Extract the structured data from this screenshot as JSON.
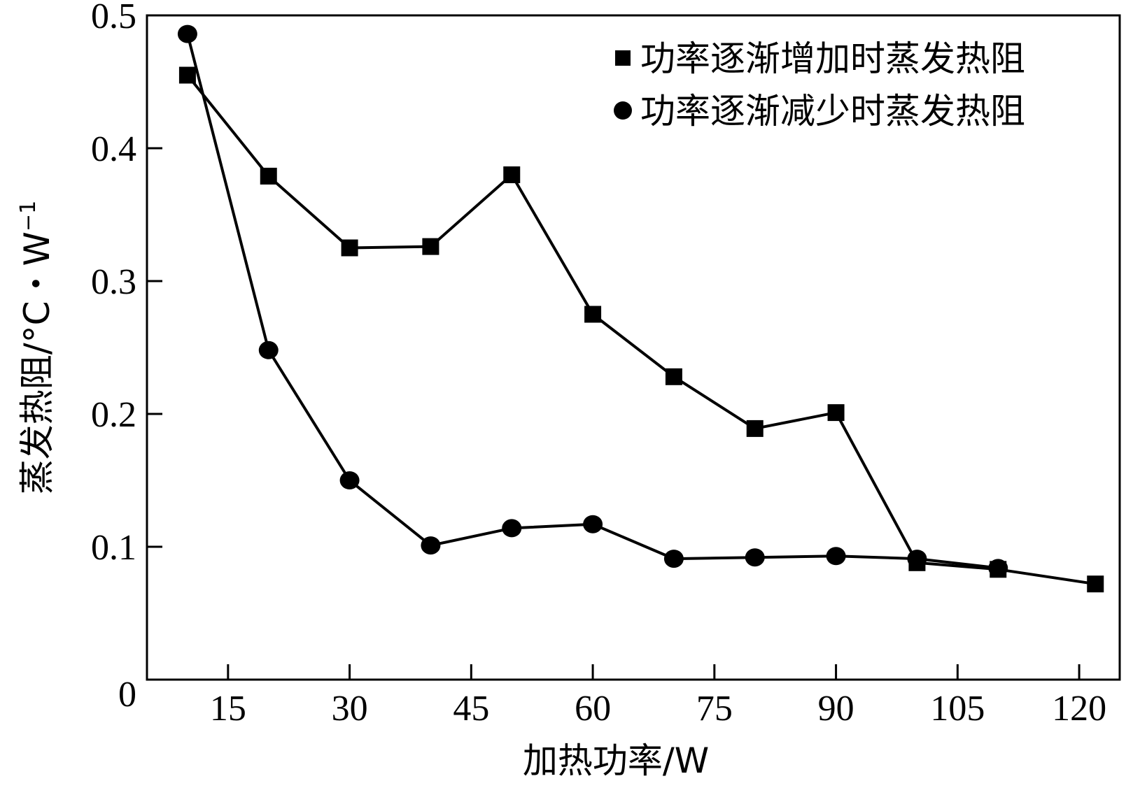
{
  "chart_data": {
    "type": "line",
    "title": "",
    "xlabel": "加热功率/W",
    "ylabel": "蒸发热阻/°C・W",
    "ylabel_superscript": "−1",
    "xlim": [
      5,
      125
    ],
    "ylim": [
      0,
      0.5
    ],
    "x_ticks": [
      15,
      30,
      45,
      60,
      75,
      90,
      105,
      120
    ],
    "y_ticks": [
      0.1,
      0.2,
      0.3,
      0.4,
      0.5
    ],
    "y_origin_label": "0",
    "grid": false,
    "legend_position": "top-right",
    "series": [
      {
        "name": "功率逐渐增加时蒸发热阻",
        "marker": "square",
        "color": "#000000",
        "x": [
          10,
          20,
          30,
          40,
          50,
          60,
          70,
          80,
          90,
          100,
          110,
          122
        ],
        "y": [
          0.455,
          0.379,
          0.325,
          0.326,
          0.38,
          0.275,
          0.228,
          0.189,
          0.201,
          0.088,
          0.083,
          0.072
        ]
      },
      {
        "name": "功率逐渐减少时蒸发热阻",
        "marker": "circle",
        "color": "#000000",
        "x": [
          10,
          20,
          30,
          40,
          50,
          60,
          70,
          80,
          90,
          100,
          110
        ],
        "y": [
          0.486,
          0.248,
          0.15,
          0.101,
          0.114,
          0.117,
          0.091,
          0.092,
          0.093,
          0.091,
          0.084
        ]
      }
    ]
  }
}
